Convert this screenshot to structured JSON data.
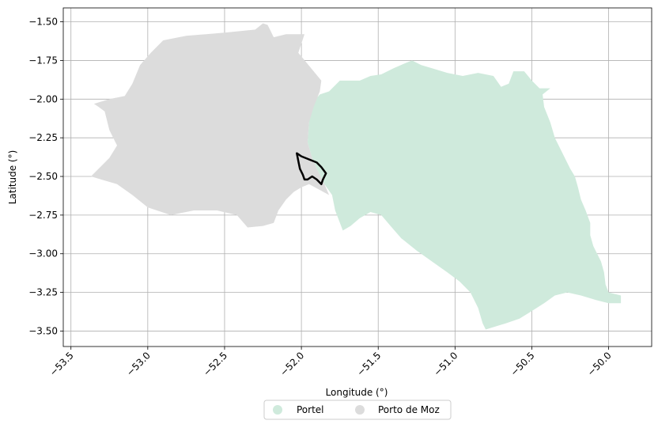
{
  "map": {
    "xlabel": "Longitude (°)",
    "ylabel": "Latitude (°)",
    "xlim": [
      -53.55,
      -49.72
    ],
    "ylim": [
      -3.6,
      -1.41
    ],
    "xticks": [
      {
        "value": -53.5,
        "label": "−53.5"
      },
      {
        "value": -53.0,
        "label": "−53.0"
      },
      {
        "value": -52.5,
        "label": "−52.5"
      },
      {
        "value": -52.0,
        "label": "−52.0"
      },
      {
        "value": -51.5,
        "label": "−51.5"
      },
      {
        "value": -51.0,
        "label": "−51.0"
      },
      {
        "value": -50.5,
        "label": "−50.5"
      },
      {
        "value": -50.0,
        "label": "−50.0"
      }
    ],
    "yticks": [
      {
        "value": -1.5,
        "label": "−1.50"
      },
      {
        "value": -1.75,
        "label": "−1.75"
      },
      {
        "value": -2.0,
        "label": "−2.00"
      },
      {
        "value": -2.25,
        "label": "−2.25"
      },
      {
        "value": -2.5,
        "label": "−2.50"
      },
      {
        "value": -2.75,
        "label": "−2.75"
      },
      {
        "value": -3.0,
        "label": "−3.00"
      },
      {
        "value": -3.25,
        "label": "−3.25"
      },
      {
        "value": -3.5,
        "label": "−3.50"
      }
    ],
    "grid": true,
    "legend_placement": "bottom-center",
    "regions": [
      {
        "name": "Portel",
        "color": "#cfeadc",
        "coords": [
          [
            -51.95,
            -2.05
          ],
          [
            -51.88,
            -1.97
          ],
          [
            -51.82,
            -1.95
          ],
          [
            -51.75,
            -1.88
          ],
          [
            -51.62,
            -1.88
          ],
          [
            -51.55,
            -1.85
          ],
          [
            -51.48,
            -1.84
          ],
          [
            -51.4,
            -1.8
          ],
          [
            -51.33,
            -1.77
          ],
          [
            -51.28,
            -1.75
          ],
          [
            -51.22,
            -1.78
          ],
          [
            -51.15,
            -1.8
          ],
          [
            -51.05,
            -1.83
          ],
          [
            -50.95,
            -1.85
          ],
          [
            -50.85,
            -1.83
          ],
          [
            -50.75,
            -1.85
          ],
          [
            -50.7,
            -1.92
          ],
          [
            -50.65,
            -1.9
          ],
          [
            -50.62,
            -1.82
          ],
          [
            -50.55,
            -1.82
          ],
          [
            -50.5,
            -1.88
          ],
          [
            -50.45,
            -1.93
          ],
          [
            -50.38,
            -1.93
          ],
          [
            -50.43,
            -1.97
          ],
          [
            -50.42,
            -2.05
          ],
          [
            -50.38,
            -2.15
          ],
          [
            -50.35,
            -2.25
          ],
          [
            -50.3,
            -2.35
          ],
          [
            -50.25,
            -2.45
          ],
          [
            -50.22,
            -2.5
          ],
          [
            -50.2,
            -2.57
          ],
          [
            -50.18,
            -2.65
          ],
          [
            -50.15,
            -2.72
          ],
          [
            -50.12,
            -2.8
          ],
          [
            -50.12,
            -2.88
          ],
          [
            -50.1,
            -2.95
          ],
          [
            -50.05,
            -3.05
          ],
          [
            -50.03,
            -3.12
          ],
          [
            -50.02,
            -3.2
          ],
          [
            -50.0,
            -3.25
          ],
          [
            -49.92,
            -3.27
          ],
          [
            -49.92,
            -3.32
          ],
          [
            -50.0,
            -3.32
          ],
          [
            -50.08,
            -3.3
          ],
          [
            -50.18,
            -3.27
          ],
          [
            -50.27,
            -3.25
          ],
          [
            -50.35,
            -3.27
          ],
          [
            -50.42,
            -3.32
          ],
          [
            -50.5,
            -3.37
          ],
          [
            -50.58,
            -3.42
          ],
          [
            -50.67,
            -3.45
          ],
          [
            -50.8,
            -3.49
          ],
          [
            -50.82,
            -3.45
          ],
          [
            -50.85,
            -3.35
          ],
          [
            -50.9,
            -3.25
          ],
          [
            -50.97,
            -3.18
          ],
          [
            -51.05,
            -3.12
          ],
          [
            -51.15,
            -3.05
          ],
          [
            -51.25,
            -2.98
          ],
          [
            -51.35,
            -2.9
          ],
          [
            -51.42,
            -2.82
          ],
          [
            -51.48,
            -2.75
          ],
          [
            -51.55,
            -2.73
          ],
          [
            -51.62,
            -2.77
          ],
          [
            -51.68,
            -2.82
          ],
          [
            -51.73,
            -2.85
          ],
          [
            -51.78,
            -2.72
          ],
          [
            -51.8,
            -2.62
          ],
          [
            -51.85,
            -2.55
          ],
          [
            -51.9,
            -2.45
          ],
          [
            -51.93,
            -2.38
          ],
          [
            -51.96,
            -2.28
          ],
          [
            -51.95,
            -2.15
          ],
          [
            -51.95,
            -2.05
          ]
        ]
      },
      {
        "name": "Porto de Moz",
        "color": "#dcdcdc",
        "coords": [
          [
            -53.37,
            -2.5
          ],
          [
            -53.32,
            -2.45
          ],
          [
            -53.25,
            -2.38
          ],
          [
            -53.2,
            -2.3
          ],
          [
            -53.25,
            -2.2
          ],
          [
            -53.28,
            -2.08
          ],
          [
            -53.32,
            -2.05
          ],
          [
            -53.35,
            -2.03
          ],
          [
            -53.25,
            -2.0
          ],
          [
            -53.15,
            -1.98
          ],
          [
            -53.1,
            -1.9
          ],
          [
            -53.05,
            -1.78
          ],
          [
            -52.98,
            -1.7
          ],
          [
            -52.9,
            -1.62
          ],
          [
            -52.75,
            -1.59
          ],
          [
            -52.62,
            -1.58
          ],
          [
            -52.5,
            -1.57
          ],
          [
            -52.3,
            -1.55
          ],
          [
            -52.25,
            -1.51
          ],
          [
            -52.22,
            -1.52
          ],
          [
            -52.18,
            -1.6
          ],
          [
            -52.1,
            -1.58
          ],
          [
            -51.98,
            -1.58
          ],
          [
            -52.02,
            -1.7
          ],
          [
            -51.92,
            -1.82
          ],
          [
            -51.87,
            -1.88
          ],
          [
            -51.88,
            -1.95
          ],
          [
            -51.92,
            -2.05
          ],
          [
            -51.95,
            -2.15
          ],
          [
            -51.96,
            -2.28
          ],
          [
            -51.93,
            -2.38
          ],
          [
            -51.9,
            -2.45
          ],
          [
            -51.85,
            -2.55
          ],
          [
            -51.82,
            -2.62
          ],
          [
            -51.95,
            -2.55
          ],
          [
            -52.0,
            -2.57
          ],
          [
            -52.05,
            -2.6
          ],
          [
            -52.1,
            -2.65
          ],
          [
            -52.15,
            -2.72
          ],
          [
            -52.18,
            -2.8
          ],
          [
            -52.25,
            -2.82
          ],
          [
            -52.35,
            -2.83
          ],
          [
            -52.42,
            -2.75
          ],
          [
            -52.55,
            -2.72
          ],
          [
            -52.7,
            -2.72
          ],
          [
            -52.85,
            -2.75
          ],
          [
            -53.0,
            -2.7
          ],
          [
            -53.1,
            -2.62
          ],
          [
            -53.2,
            -2.55
          ],
          [
            -53.37,
            -2.5
          ]
        ]
      }
    ],
    "outline": {
      "color": "#000000",
      "coords": [
        [
          -52.03,
          -2.35
        ],
        [
          -52.0,
          -2.37
        ],
        [
          -51.95,
          -2.39
        ],
        [
          -51.9,
          -2.41
        ],
        [
          -51.87,
          -2.44
        ],
        [
          -51.84,
          -2.48
        ],
        [
          -51.86,
          -2.52
        ],
        [
          -51.87,
          -2.55
        ],
        [
          -51.9,
          -2.52
        ],
        [
          -51.93,
          -2.5
        ],
        [
          -51.96,
          -2.52
        ],
        [
          -51.98,
          -2.52
        ],
        [
          -51.99,
          -2.49
        ],
        [
          -52.01,
          -2.45
        ],
        [
          -52.02,
          -2.4
        ],
        [
          -52.03,
          -2.35
        ]
      ]
    }
  }
}
